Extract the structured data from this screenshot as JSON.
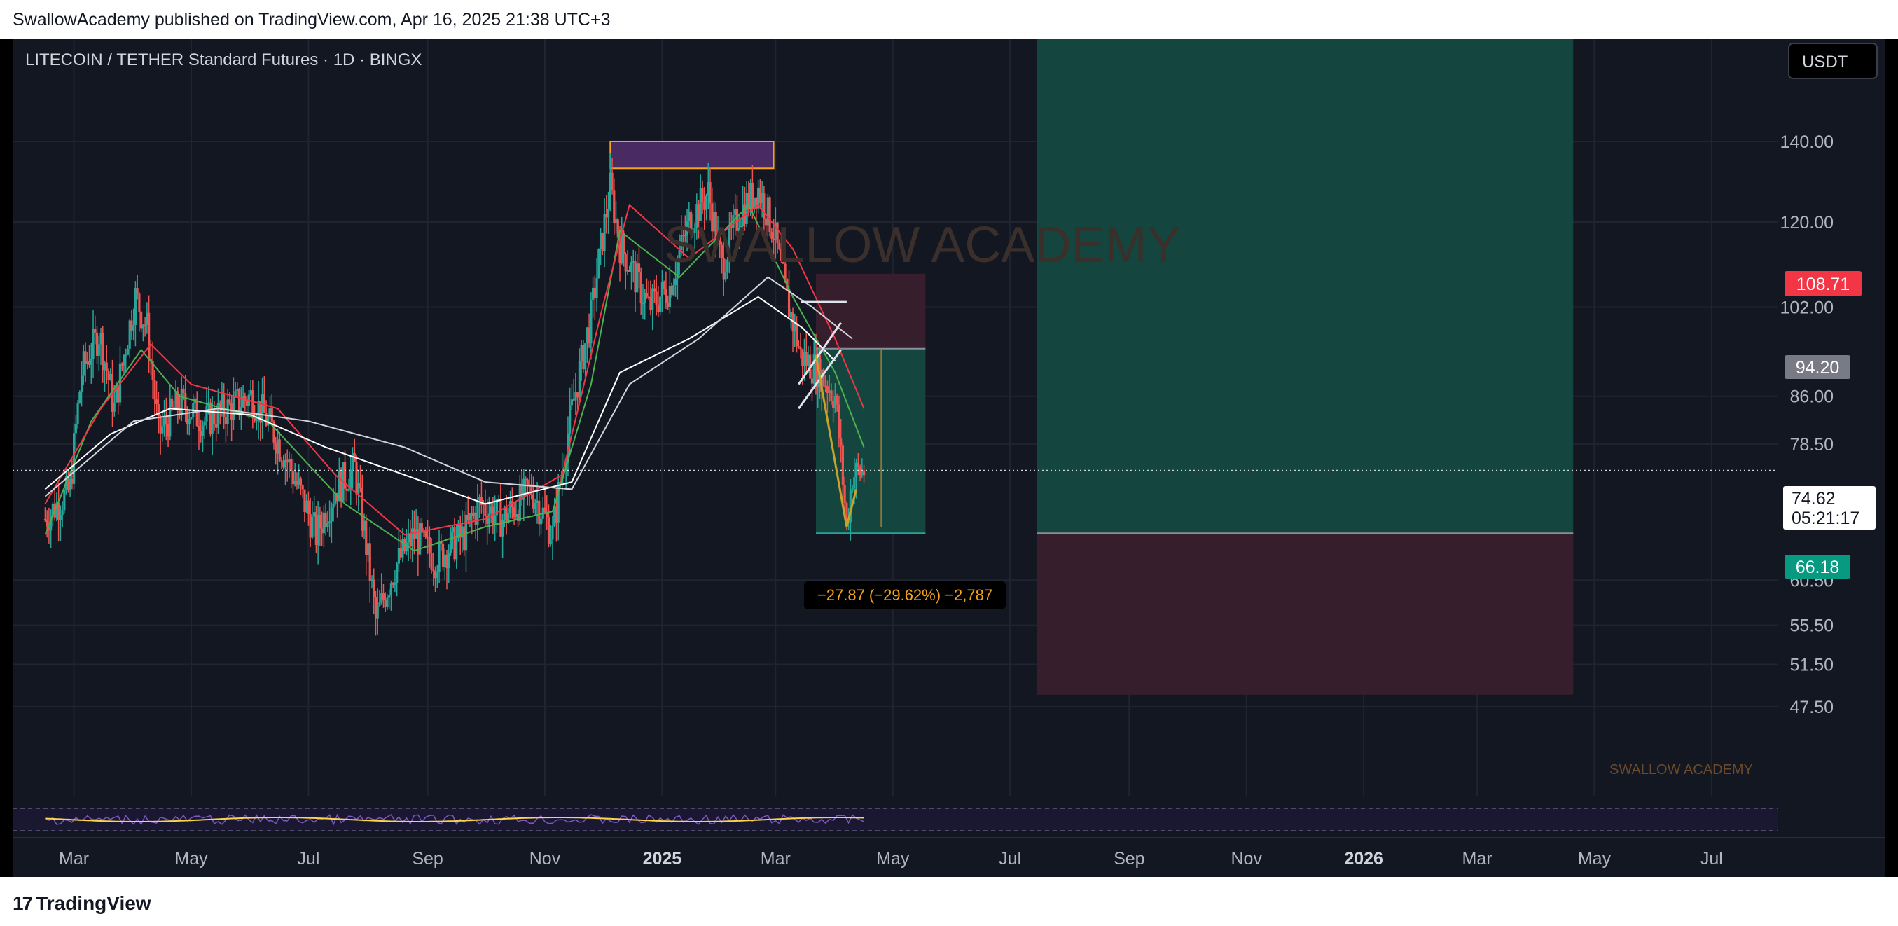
{
  "header": {
    "published": "SwallowAcademy published on TradingView.com, Apr 16, 2025 21:38 UTC+3"
  },
  "footer": {
    "brand": "TradingView",
    "brand_mark": "17"
  },
  "chart": {
    "symbol_title": "LITECOIN / TETHER Standard Futures · 1D · BINGX",
    "currency": "USDT",
    "watermark": "SWALLOW ACADEMY",
    "watermark_small": "SWALLOW ACADEMY",
    "measure_label": "−27.87 (−29.62%) −2,787",
    "current_price": "74.62",
    "countdown": "05:21:17",
    "badge_stop": "108.71",
    "badge_entry": "94.20",
    "badge_target": "66.18",
    "colors": {
      "background": "#131722",
      "grid": "#1f2430",
      "up": "#26a69a",
      "down": "#ef5350",
      "ema_fast": "#4caf50",
      "ema_mid": "#f23645",
      "ma_slow": "#ffffff",
      "profit_zone": "#14463f",
      "loss_zone": "#371e2c",
      "resistance_fill": "#4a2a63",
      "resistance_border": "#f7a21b",
      "stop_badge": "#f23645",
      "entry_badge": "#787b86",
      "target_badge": "#089981",
      "rsi_line": "#7e57c2",
      "rsi_ma": "#f9d64a"
    }
  },
  "chart_data": {
    "type": "candlestick",
    "y_scale": "log",
    "ylim": [
      44,
      155
    ],
    "y_ticks": [
      "140.00",
      "120.00",
      "102.00",
      "86.00",
      "78.50",
      "60.50",
      "55.50",
      "51.50",
      "47.50"
    ],
    "x_ticks": [
      "Mar",
      "May",
      "Jul",
      "Sep",
      "Nov",
      "2025",
      "Mar",
      "May",
      "Jul",
      "Sep",
      "Nov",
      "2026",
      "Mar",
      "May",
      "Jul"
    ],
    "price_path": [
      [
        "2024-02-15",
        68
      ],
      [
        "2024-02-28",
        72
      ],
      [
        "2024-03-05",
        90
      ],
      [
        "2024-03-14",
        97
      ],
      [
        "2024-03-22",
        84
      ],
      [
        "2024-04-02",
        104
      ],
      [
        "2024-04-08",
        98
      ],
      [
        "2024-04-14",
        80
      ],
      [
        "2024-04-25",
        85
      ],
      [
        "2024-05-08",
        82
      ],
      [
        "2024-05-20",
        84
      ],
      [
        "2024-06-01",
        86
      ],
      [
        "2024-06-10",
        82
      ],
      [
        "2024-06-20",
        76
      ],
      [
        "2024-07-05",
        66
      ],
      [
        "2024-07-15",
        72
      ],
      [
        "2024-07-25",
        75
      ],
      [
        "2024-08-05",
        56
      ],
      [
        "2024-08-15",
        62
      ],
      [
        "2024-08-25",
        66
      ],
      [
        "2024-09-05",
        63
      ],
      [
        "2024-09-20",
        66
      ],
      [
        "2024-09-28",
        70
      ],
      [
        "2024-10-10",
        68
      ],
      [
        "2024-10-25",
        72
      ],
      [
        "2024-11-05",
        66
      ],
      [
        "2024-11-14",
        82
      ],
      [
        "2024-11-25",
        100
      ],
      [
        "2024-12-05",
        128
      ],
      [
        "2024-12-10",
        115
      ],
      [
        "2024-12-18",
        108
      ],
      [
        "2024-12-25",
        102
      ],
      [
        "2025-01-05",
        106
      ],
      [
        "2025-01-15",
        120
      ],
      [
        "2025-01-25",
        127
      ],
      [
        "2025-02-01",
        110
      ],
      [
        "2025-02-10",
        122
      ],
      [
        "2025-02-20",
        128
      ],
      [
        "2025-02-28",
        118
      ],
      [
        "2025-03-06",
        105
      ],
      [
        "2025-03-14",
        93
      ],
      [
        "2025-03-24",
        90
      ],
      [
        "2025-04-01",
        86
      ],
      [
        "2025-04-07",
        67
      ],
      [
        "2025-04-10",
        74
      ],
      [
        "2025-04-16",
        74.62
      ]
    ],
    "moving_averages": [
      {
        "name": "",
        "color": "#4caf50",
        "values": [
          [
            "2024-02-15",
            66
          ],
          [
            "2024-03-10",
            82
          ],
          [
            "2024-04-05",
            94
          ],
          [
            "2024-04-25",
            86
          ],
          [
            "2024-06-10",
            82
          ],
          [
            "2024-07-20",
            70
          ],
          [
            "2024-08-25",
            64
          ],
          [
            "2024-10-01",
            67
          ],
          [
            "2024-11-05",
            69
          ],
          [
            "2024-11-25",
            88
          ],
          [
            "2024-12-10",
            118
          ],
          [
            "2025-01-10",
            108
          ],
          [
            "2025-02-15",
            124
          ],
          [
            "2025-03-10",
            104
          ],
          [
            "2025-04-01",
            90
          ],
          [
            "2025-04-16",
            78
          ]
        ]
      },
      {
        "name": "",
        "color": "#f23645",
        "values": [
          [
            "2024-02-15",
            70
          ],
          [
            "2024-03-15",
            84
          ],
          [
            "2024-04-10",
            95
          ],
          [
            "2024-05-01",
            88
          ],
          [
            "2024-06-15",
            84
          ],
          [
            "2024-07-15",
            74
          ],
          [
            "2024-08-20",
            66
          ],
          [
            "2024-10-01",
            68
          ],
          [
            "2024-11-10",
            74
          ],
          [
            "2024-12-01",
            102
          ],
          [
            "2024-12-15",
            124
          ],
          [
            "2025-01-15",
            112
          ],
          [
            "2025-02-20",
            124
          ],
          [
            "2025-03-10",
            114
          ],
          [
            "2025-04-01",
            96
          ],
          [
            "2025-04-16",
            84
          ]
        ]
      },
      {
        "name": "",
        "color": "#ffffff",
        "values": [
          [
            "2024-02-15",
            72
          ],
          [
            "2024-03-20",
            80
          ],
          [
            "2024-04-20",
            84
          ],
          [
            "2024-06-01",
            83
          ],
          [
            "2024-07-10",
            78
          ],
          [
            "2024-08-20",
            74
          ],
          [
            "2024-10-01",
            70
          ],
          [
            "2024-11-15",
            73
          ],
          [
            "2024-12-10",
            90
          ],
          [
            "2025-01-15",
            96
          ],
          [
            "2025-02-20",
            104
          ],
          [
            "2025-03-15",
            98
          ],
          [
            "2025-04-01",
            92
          ]
        ]
      },
      {
        "name": "",
        "color": "#d1d4dc",
        "values": [
          [
            "2024-02-15",
            71
          ],
          [
            "2024-04-01",
            82
          ],
          [
            "2024-05-15",
            84
          ],
          [
            "2024-07-01",
            82
          ],
          [
            "2024-08-20",
            78
          ],
          [
            "2024-10-01",
            73
          ],
          [
            "2024-11-15",
            72
          ],
          [
            "2024-12-15",
            88
          ],
          [
            "2025-01-20",
            96
          ],
          [
            "2025-02-25",
            108
          ],
          [
            "2025-03-20",
            102
          ],
          [
            "2025-04-10",
            96
          ]
        ]
      }
    ],
    "annotations": {
      "resistance_zone": {
        "x": [
          "2024-12-05",
          "2025-02-28"
        ],
        "y": [
          133,
          140
        ]
      },
      "short_position": {
        "x": [
          "2025-03-22",
          "2025-05-18"
        ],
        "entry": 94.2,
        "stop": 108.71,
        "target": 66.18
      },
      "long_position": {
        "x": [
          "2025-07-15",
          "2026-04-20"
        ],
        "entry": 66.18,
        "stop": 48.6,
        "target": 160
      }
    },
    "last_price": 74.62
  }
}
